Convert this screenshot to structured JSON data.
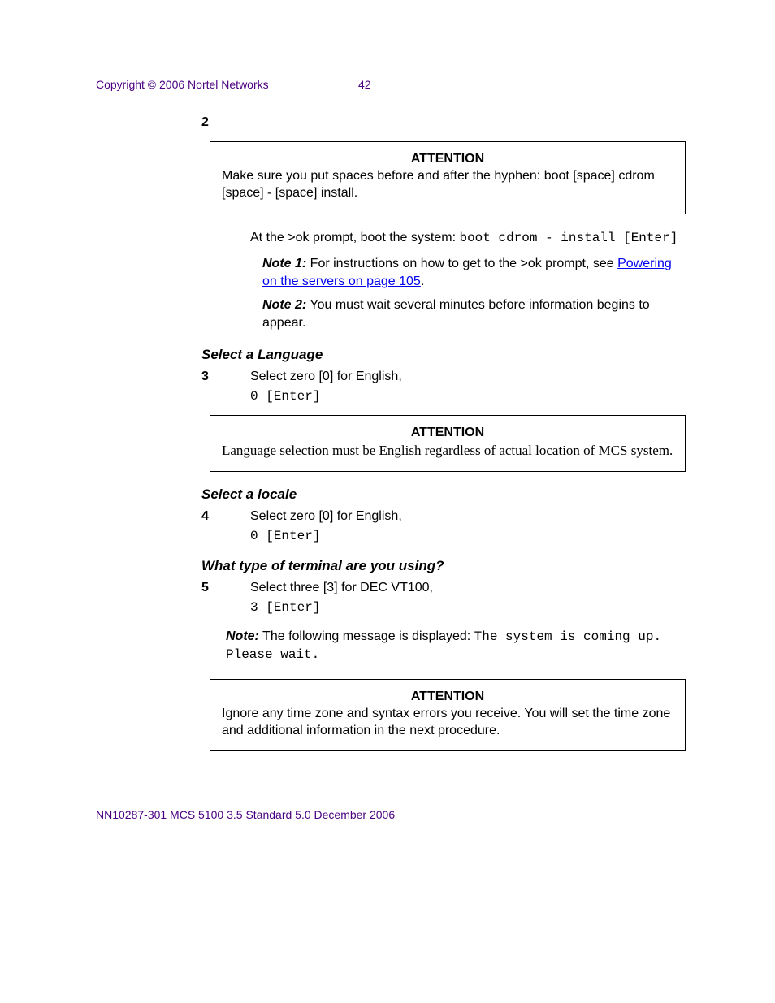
{
  "colors": {
    "header_footer": "#4b0082",
    "link": "#0000ee",
    "text": "#000000",
    "border": "#000000",
    "background": "#ffffff"
  },
  "header": {
    "copyright": "Copyright © 2006 Nortel Networks",
    "page_number": "42"
  },
  "step2": {
    "number": "2",
    "attention": {
      "title": "ATTENTION",
      "body": "Make sure you put spaces before and after the hyphen: boot [space]  cdrom [space] - [space] install."
    },
    "boot_text_prefix": "At the >ok prompt, boot the system: ",
    "boot_cmd": "boot cdrom - install [Enter]",
    "note1_label": "Note 1:",
    "note1_text": "  For instructions on how to get to the >ok prompt, see ",
    "note1_link": "Powering on the servers on page 105",
    "note1_suffix": ".",
    "note2_label": "Note 2:",
    "note2_text": "  You must wait several minutes before information begins to appear."
  },
  "language": {
    "heading": "Select a Language",
    "step_number": "3",
    "step_text": "Select zero [0] for English,",
    "cmd": "0 [Enter]",
    "attention": {
      "title": "ATTENTION",
      "body": "Language selection must be English regardless of actual location of MCS system."
    }
  },
  "locale": {
    "heading": "Select a locale",
    "step_number": "4",
    "step_text": "Select zero [0] for English,",
    "cmd": "0 [Enter]"
  },
  "terminal": {
    "heading": "What type of terminal are you using?",
    "step_number": "5",
    "step_text": "Select three [3] for DEC VT100,",
    "cmd": "3 [Enter]",
    "note_label": "Note:",
    "note_text": "  The following message is displayed: ",
    "note_mono": "The system is coming up. Please wait.",
    "attention": {
      "title": "ATTENTION",
      "body": "Ignore any time zone and syntax errors you receive. You will set the time zone and additional information in the next procedure."
    }
  },
  "footer": {
    "text": "NN10287-301   MCS 5100 3.5   Standard   5.0   December 2006"
  }
}
